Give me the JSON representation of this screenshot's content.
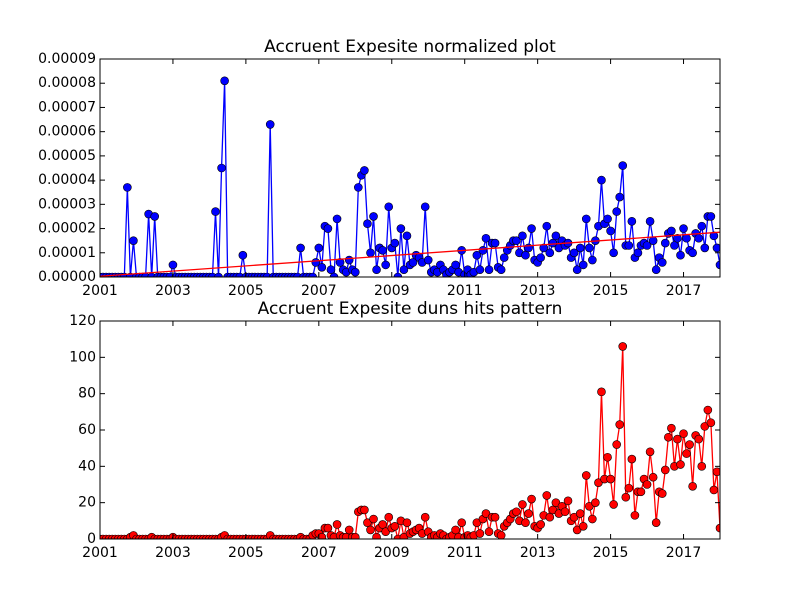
{
  "chart_data": [
    {
      "type": "line",
      "title": "Accruent Expesite normalized plot",
      "x": [
        2001,
        2001.083,
        2001.167,
        2001.25,
        2001.333,
        2001.417,
        2001.5,
        2001.583,
        2001.667,
        2001.75,
        2001.833,
        2001.917,
        2002,
        2002.083,
        2002.167,
        2002.25,
        2002.333,
        2002.417,
        2002.5,
        2002.583,
        2002.667,
        2002.75,
        2002.833,
        2002.917,
        2003,
        2003.083,
        2003.167,
        2003.25,
        2003.333,
        2003.417,
        2003.5,
        2003.583,
        2003.667,
        2003.75,
        2003.833,
        2003.917,
        2004,
        2004.083,
        2004.167,
        2004.25,
        2004.333,
        2004.417,
        2004.5,
        2004.583,
        2004.667,
        2004.75,
        2004.833,
        2004.917,
        2005,
        2005.083,
        2005.167,
        2005.25,
        2005.333,
        2005.417,
        2005.5,
        2005.583,
        2005.667,
        2005.75,
        2005.833,
        2005.917,
        2006,
        2006.083,
        2006.167,
        2006.25,
        2006.333,
        2006.417,
        2006.5,
        2006.583,
        2006.667,
        2006.75,
        2006.833,
        2006.917,
        2007,
        2007.083,
        2007.167,
        2007.25,
        2007.333,
        2007.417,
        2007.5,
        2007.583,
        2007.667,
        2007.75,
        2007.833,
        2007.917,
        2008,
        2008.083,
        2008.167,
        2008.25,
        2008.333,
        2008.417,
        2008.5,
        2008.583,
        2008.667,
        2008.75,
        2008.833,
        2008.917,
        2009,
        2009.083,
        2009.167,
        2009.25,
        2009.333,
        2009.417,
        2009.5,
        2009.583,
        2009.667,
        2009.75,
        2009.833,
        2009.917,
        2010,
        2010.083,
        2010.167,
        2010.25,
        2010.333,
        2010.417,
        2010.5,
        2010.583,
        2010.667,
        2010.75,
        2010.833,
        2010.917,
        2011,
        2011.083,
        2011.167,
        2011.25,
        2011.333,
        2011.417,
        2011.5,
        2011.583,
        2011.667,
        2011.75,
        2011.833,
        2011.917,
        2012,
        2012.083,
        2012.167,
        2012.25,
        2012.333,
        2012.417,
        2012.5,
        2012.583,
        2012.667,
        2012.75,
        2012.833,
        2012.917,
        2013,
        2013.083,
        2013.167,
        2013.25,
        2013.333,
        2013.417,
        2013.5,
        2013.583,
        2013.667,
        2013.75,
        2013.833,
        2013.917,
        2014,
        2014.083,
        2014.167,
        2014.25,
        2014.333,
        2014.417,
        2014.5,
        2014.583,
        2014.667,
        2014.75,
        2014.833,
        2014.917,
        2015,
        2015.083,
        2015.167,
        2015.25,
        2015.333,
        2015.417,
        2015.5,
        2015.583,
        2015.667,
        2015.75,
        2015.833,
        2015.917,
        2016,
        2016.083,
        2016.167,
        2016.25,
        2016.333,
        2016.417,
        2016.5,
        2016.583,
        2016.667,
        2016.75,
        2016.833,
        2016.917,
        2017,
        2017.083,
        2017.167,
        2017.25,
        2017.333,
        2017.417,
        2017.5,
        2017.583,
        2017.667,
        2017.75,
        2017.833,
        2017.917,
        2018
      ],
      "series": [
        {
          "color": "#0000ff",
          "marker": true,
          "values": [
            0,
            0,
            0,
            0,
            0,
            0,
            0,
            0,
            0,
            3.7e-05,
            0,
            1.5e-05,
            0,
            0,
            0,
            0,
            2.6e-05,
            0,
            2.5e-05,
            0,
            0,
            0,
            0,
            0,
            5e-06,
            0,
            0,
            0,
            0,
            0,
            0,
            0,
            0,
            0,
            0,
            0,
            0,
            0,
            2.7e-05,
            0,
            4.5e-05,
            8.1e-05,
            0,
            0,
            0,
            0,
            0,
            9e-06,
            0,
            0,
            0,
            0,
            0,
            0,
            0,
            0,
            6.3e-05,
            0,
            0,
            0,
            0,
            0,
            0,
            0,
            0,
            0,
            1.2e-05,
            0,
            0,
            0,
            0,
            6e-06,
            1.2e-05,
            4e-06,
            2.1e-05,
            2e-05,
            3e-06,
            0,
            2.4e-05,
            6e-06,
            3e-06,
            2e-06,
            7e-06,
            3e-06,
            2e-06,
            3.7e-05,
            4.2e-05,
            4.4e-05,
            2.2e-05,
            1e-05,
            2.5e-05,
            3e-06,
            1.2e-05,
            1.1e-05,
            5e-06,
            2.9e-05,
            1.2e-05,
            1.4e-05,
            0,
            2e-05,
            3e-06,
            1.7e-05,
            5e-06,
            6e-06,
            9e-06,
            8e-06,
            6e-06,
            2.9e-05,
            7e-06,
            2e-06,
            3e-06,
            2e-06,
            5e-06,
            3e-06,
            1e-06,
            2e-06,
            3e-06,
            5e-06,
            2e-06,
            1.1e-05,
            1e-06,
            3e-06,
            1e-06,
            2e-06,
            9e-06,
            3e-06,
            1.1e-05,
            1.6e-05,
            3e-06,
            1.4e-05,
            1.4e-05,
            4e-06,
            3e-06,
            8e-06,
            1.1e-05,
            1.3e-05,
            1.5e-05,
            1.5e-05,
            1e-05,
            1.7e-05,
            9e-06,
            1.2e-05,
            2e-05,
            7e-06,
            6e-06,
            8e-06,
            1.2e-05,
            2.1e-05,
            1e-05,
            1.4e-05,
            1.7e-05,
            1.2e-05,
            1.5e-05,
            1.3e-05,
            1.4e-05,
            8e-06,
            1e-05,
            3e-06,
            1.2e-05,
            5e-06,
            2.4e-05,
            1.2e-05,
            7e-06,
            1.5e-05,
            2.1e-05,
            4e-05,
            2.2e-05,
            2.4e-05,
            1.9e-05,
            1e-05,
            2.7e-05,
            3.3e-05,
            4.6e-05,
            1.3e-05,
            1.3e-05,
            2.3e-05,
            8e-06,
            1e-05,
            1.3e-05,
            1.4e-05,
            1.3e-05,
            2.3e-05,
            1.5e-05,
            3e-06,
            8e-06,
            6e-06,
            1.4e-05,
            1.8e-05,
            1.9e-05,
            1.3e-05,
            1.6e-05,
            9e-06,
            2e-05,
            1.6e-05,
            1.1e-05,
            1e-05,
            1.8e-05,
            1.6e-05,
            2.1e-05,
            1.2e-05,
            2.5e-05,
            2.5e-05,
            1.7e-05,
            1.2e-05,
            5e-06
          ]
        },
        {
          "color": "#ff0000",
          "marker": false,
          "x": [
            2001,
            2018
          ],
          "values": [
            3e-07,
            1.85e-05
          ]
        }
      ],
      "xlim": [
        2001,
        2018
      ],
      "xticks": [
        2001,
        2003,
        2005,
        2007,
        2009,
        2011,
        2013,
        2015,
        2017
      ],
      "ylim": [
        0,
        9e-05
      ],
      "yticks": [
        {
          "value": 0,
          "label": "0.00000"
        },
        1e-05,
        2e-05,
        3e-05,
        4e-05,
        5e-05,
        6e-05,
        7e-05,
        8e-05,
        9e-05
      ]
    },
    {
      "type": "line",
      "title": "Accruent Expesite duns hits pattern",
      "x": [
        2001,
        2001.083,
        2001.167,
        2001.25,
        2001.333,
        2001.417,
        2001.5,
        2001.583,
        2001.667,
        2001.75,
        2001.833,
        2001.917,
        2002,
        2002.083,
        2002.167,
        2002.25,
        2002.333,
        2002.417,
        2002.5,
        2002.583,
        2002.667,
        2002.75,
        2002.833,
        2002.917,
        2003,
        2003.083,
        2003.167,
        2003.25,
        2003.333,
        2003.417,
        2003.5,
        2003.583,
        2003.667,
        2003.75,
        2003.833,
        2003.917,
        2004,
        2004.083,
        2004.167,
        2004.25,
        2004.333,
        2004.417,
        2004.5,
        2004.583,
        2004.667,
        2004.75,
        2004.833,
        2004.917,
        2005,
        2005.083,
        2005.167,
        2005.25,
        2005.333,
        2005.417,
        2005.5,
        2005.583,
        2005.667,
        2005.75,
        2005.833,
        2005.917,
        2006,
        2006.083,
        2006.167,
        2006.25,
        2006.333,
        2006.417,
        2006.5,
        2006.583,
        2006.667,
        2006.75,
        2006.833,
        2006.917,
        2007,
        2007.083,
        2007.167,
        2007.25,
        2007.333,
        2007.417,
        2007.5,
        2007.583,
        2007.667,
        2007.75,
        2007.833,
        2007.917,
        2008,
        2008.083,
        2008.167,
        2008.25,
        2008.333,
        2008.417,
        2008.5,
        2008.583,
        2008.667,
        2008.75,
        2008.833,
        2008.917,
        2009,
        2009.083,
        2009.167,
        2009.25,
        2009.333,
        2009.417,
        2009.5,
        2009.583,
        2009.667,
        2009.75,
        2009.833,
        2009.917,
        2010,
        2010.083,
        2010.167,
        2010.25,
        2010.333,
        2010.417,
        2010.5,
        2010.583,
        2010.667,
        2010.75,
        2010.833,
        2010.917,
        2011,
        2011.083,
        2011.167,
        2011.25,
        2011.333,
        2011.417,
        2011.5,
        2011.583,
        2011.667,
        2011.75,
        2011.833,
        2011.917,
        2012,
        2012.083,
        2012.167,
        2012.25,
        2012.333,
        2012.417,
        2012.5,
        2012.583,
        2012.667,
        2012.75,
        2012.833,
        2012.917,
        2013,
        2013.083,
        2013.167,
        2013.25,
        2013.333,
        2013.417,
        2013.5,
        2013.583,
        2013.667,
        2013.75,
        2013.833,
        2013.917,
        2014,
        2014.083,
        2014.167,
        2014.25,
        2014.333,
        2014.417,
        2014.5,
        2014.583,
        2014.667,
        2014.75,
        2014.833,
        2014.917,
        2015,
        2015.083,
        2015.167,
        2015.25,
        2015.333,
        2015.417,
        2015.5,
        2015.583,
        2015.667,
        2015.75,
        2015.833,
        2015.917,
        2016,
        2016.083,
        2016.167,
        2016.25,
        2016.333,
        2016.417,
        2016.5,
        2016.583,
        2016.667,
        2016.75,
        2016.833,
        2016.917,
        2017,
        2017.083,
        2017.167,
        2017.25,
        2017.333,
        2017.417,
        2017.5,
        2017.583,
        2017.667,
        2017.75,
        2017.833,
        2017.917,
        2018
      ],
      "series": [
        {
          "color": "#ff0000",
          "marker": true,
          "values": [
            0,
            0,
            0,
            0,
            0,
            0,
            0,
            0,
            0,
            0,
            1,
            2,
            0,
            0,
            0,
            0,
            0,
            1,
            0,
            0,
            0,
            0,
            0,
            0,
            1,
            0,
            0,
            0,
            0,
            0,
            0,
            0,
            0,
            0,
            0,
            0,
            0,
            0,
            0,
            0,
            1,
            2,
            0,
            0,
            0,
            0,
            0,
            0,
            0,
            0,
            0,
            0,
            0,
            0,
            0,
            0,
            2,
            0,
            0,
            0,
            0,
            0,
            0,
            0,
            0,
            0,
            1,
            0,
            0,
            0,
            2,
            3,
            3,
            1,
            6,
            6,
            2,
            1,
            8,
            2,
            1,
            1,
            5,
            1,
            1,
            15,
            16,
            16,
            9,
            5,
            11,
            1,
            6,
            8,
            4,
            12,
            6,
            7,
            0,
            10,
            1,
            9,
            3,
            4,
            5,
            6,
            3,
            12,
            4,
            1,
            2,
            1,
            3,
            2,
            0,
            1,
            2,
            5,
            1,
            9,
            1,
            2,
            1,
            2,
            9,
            3,
            11,
            14,
            4,
            12,
            12,
            3,
            2,
            7,
            9,
            11,
            14,
            15,
            10,
            19,
            9,
            14,
            22,
            7,
            6,
            8,
            13,
            24,
            12,
            16,
            20,
            14,
            18,
            15,
            21,
            10,
            12,
            5,
            14,
            7,
            35,
            18,
            11,
            20,
            31,
            81,
            33,
            45,
            33,
            19,
            52,
            63,
            106,
            23,
            28,
            44,
            13,
            26,
            26,
            33,
            30,
            48,
            34,
            9,
            26,
            25,
            38,
            56,
            61,
            40,
            55,
            41,
            58,
            47,
            52,
            29,
            57,
            55,
            40,
            62,
            71,
            64,
            27,
            37,
            6
          ]
        }
      ],
      "xlim": [
        2001,
        2018
      ],
      "xticks": [
        2001,
        2003,
        2005,
        2007,
        2009,
        2011,
        2013,
        2015,
        2017
      ],
      "ylim": [
        0,
        120
      ],
      "yticks": [
        0,
        20,
        40,
        60,
        80,
        100,
        120
      ]
    }
  ]
}
